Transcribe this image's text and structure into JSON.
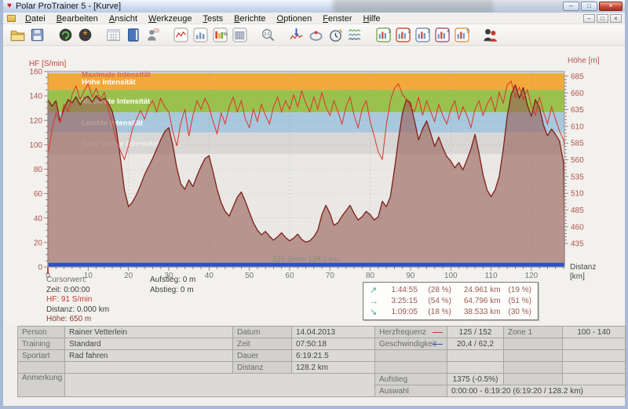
{
  "window": {
    "title": "Polar ProTrainer 5 - [Kurve]"
  },
  "menu": {
    "items": [
      {
        "label": "Datei",
        "accel": "D"
      },
      {
        "label": "Bearbeiten",
        "accel": "B"
      },
      {
        "label": "Ansicht",
        "accel": "A"
      },
      {
        "label": "Werkzeuge",
        "accel": "W"
      },
      {
        "label": "Tests",
        "accel": "T"
      },
      {
        "label": "Berichte",
        "accel": "B"
      },
      {
        "label": "Optionen",
        "accel": "O"
      },
      {
        "label": "Fenster",
        "accel": "F"
      },
      {
        "label": "Hilfe",
        "accel": "H"
      }
    ]
  },
  "toolbar": {
    "buttons": [
      {
        "name": "open-file-button",
        "icon": "open"
      },
      {
        "name": "save-button",
        "icon": "save"
      },
      {
        "name": "transfer-from-watch-button",
        "icon": "sync",
        "gap": true
      },
      {
        "name": "watch-settings-button",
        "icon": "gear"
      },
      {
        "name": "calendar-button",
        "icon": "calendar",
        "gap": true
      },
      {
        "name": "training-diary-button",
        "icon": "diary"
      },
      {
        "name": "person-info-button",
        "icon": "person"
      },
      {
        "name": "curve-view-button",
        "icon": "curve",
        "gap": true
      },
      {
        "name": "bar-view-button",
        "icon": "bars"
      },
      {
        "name": "percent-view-button",
        "icon": "pct"
      },
      {
        "name": "lap-view-button",
        "icon": "vbars"
      },
      {
        "name": "zoom-1-1-button",
        "icon": "zoom",
        "gap": true
      },
      {
        "name": "curve-download-button",
        "icon": "downchart",
        "gap": true
      },
      {
        "name": "lap-marker-button",
        "icon": "lap"
      },
      {
        "name": "timer-button",
        "icon": "timer"
      },
      {
        "name": "multi-curve-button",
        "icon": "multi"
      },
      {
        "name": "view-1-button",
        "icon": "num",
        "n": "1",
        "color": "#6aa84f",
        "gap": true
      },
      {
        "name": "view-2-button",
        "icon": "num",
        "n": "2",
        "color": "#cc4125"
      },
      {
        "name": "view-3-button",
        "icon": "num",
        "n": "3",
        "color": "#6d8ab0"
      },
      {
        "name": "view-4-button",
        "icon": "num",
        "n": "4",
        "color": "#a64d79"
      },
      {
        "name": "view-5-button",
        "icon": "num",
        "n": "5",
        "color": "#e69138"
      },
      {
        "name": "persons-button",
        "icon": "people",
        "gap": true
      }
    ]
  },
  "chart_data": {
    "type": "line",
    "x_axis": {
      "label_line1": "Distanz",
      "label_line2": "[km]",
      "min": 0,
      "max": 128.2,
      "tick_major": 10,
      "tick_minor": 2,
      "grid_every": 20
    },
    "y_left": {
      "label": "HF [S/min]",
      "min": 0,
      "max": 160,
      "tick_major": 20,
      "tick_minor": 5,
      "grid_every": 20,
      "tick_color": "#b2544a"
    },
    "y_right": {
      "label": "Höhe [m]",
      "min": 400,
      "max": 692,
      "tick_labels_from": 435,
      "tick_labels_to": 685,
      "tick_major": 25,
      "tick_minor": 5,
      "tick_color": "#b2544a"
    },
    "bands": [
      {
        "label": "Maximale Intensität",
        "from": 158.5,
        "to": 162,
        "color": "#cfd9e2",
        "label_color": "#d9695e"
      },
      {
        "label": "Hohe Intensität",
        "from": 145,
        "to": 158.5,
        "color": "#f2a93c",
        "label_color": "#ffffff"
      },
      {
        "label": "Moderate Intensität",
        "from": 126.5,
        "to": 145,
        "color": "#9ac14e",
        "label_color": "#ffffff"
      },
      {
        "label": "Leichte Intensität",
        "from": 110,
        "to": 126.5,
        "color": "#a8c8de",
        "label_color": "#ffffff"
      },
      {
        "label": "Sehr leichte Intensität",
        "from": 92.5,
        "to": 110,
        "color": "#d8d7d5",
        "label_color": "#efefef"
      }
    ],
    "x_step": 1,
    "x_last": 128.2,
    "series": [
      {
        "name": "Höhe",
        "axis": "right",
        "line_color": "#7d2018",
        "fill_color": "rgba(152,97,89,0.62)",
        "values": [
          650,
          640,
          648,
          618,
          636,
          650,
          645,
          654,
          642,
          652,
          655,
          646,
          656,
          648,
          652,
          645,
          632,
          605,
          562,
          515,
          490,
          497,
          508,
          522,
          538,
          550,
          562,
          576,
          590,
          602,
          608,
          582,
          548,
          524,
          516,
          530,
          520,
          536,
          550,
          562,
          566,
          542,
          516,
          496,
          483,
          476,
          490,
          504,
          512,
          498,
          482,
          466,
          455,
          448,
          453,
          446,
          440,
          445,
          451,
          444,
          439,
          443,
          449,
          441,
          437,
          439,
          445,
          455,
          478,
          492,
          480,
          462,
          466,
          476,
          484,
          492,
          480,
          470,
          475,
          483,
          478,
          470,
          475,
          498,
          490,
          505,
          545,
          590,
          630,
          650,
          645,
          618,
          590,
          606,
          618,
          600,
          580,
          594,
          578,
          565,
          558,
          548,
          556,
          545,
          560,
          576,
          598,
          570,
          538,
          515,
          505,
          515,
          535,
          575,
          625,
          658,
          672,
          652,
          668,
          642,
          625,
          650,
          638,
          612,
          596,
          606,
          598,
          588,
          555,
          452
        ]
      },
      {
        "name": "Herzfrequenz",
        "axis": "left",
        "line_color": "#e13028",
        "values": [
          91,
          112,
          126,
          118,
          133,
          127,
          141,
          148,
          137,
          144,
          150,
          139,
          146,
          137,
          143,
          129,
          117,
          104,
          95,
          88,
          99,
          113,
          121,
          128,
          121,
          131,
          136,
          127,
          138,
          131,
          127,
          111,
          99,
          118,
          129,
          107,
          124,
          136,
          129,
          138,
          131,
          119,
          109,
          126,
          117,
          131,
          139,
          127,
          136,
          121,
          114,
          129,
          119,
          133,
          124,
          117,
          131,
          139,
          127,
          136,
          129,
          141,
          131,
          144,
          134,
          127,
          139,
          129,
          143,
          131,
          124,
          136,
          127,
          117,
          131,
          139,
          124,
          114,
          129,
          136,
          119,
          107,
          94,
          88,
          116,
          136,
          146,
          150,
          141,
          137,
          131,
          127,
          139,
          124,
          136,
          127,
          119,
          133,
          124,
          117,
          129,
          136,
          121,
          131,
          124,
          114,
          129,
          136,
          124,
          133,
          139,
          127,
          143,
          134,
          149,
          152,
          139,
          147,
          137,
          145,
          131,
          124,
          139,
          127,
          117,
          131,
          121,
          111,
          104,
          97
        ]
      }
    ],
    "selection_bar": {
      "color": "#2a50cc"
    },
    "avg_label": "125 S/min 128.2 km"
  },
  "cursor": {
    "title": "Cursorwert:",
    "zeit": "Zeit: 0:00:00",
    "hf": "HF: 91 S/min",
    "distanz": "Distanz: 0.000 km",
    "hoehe": "Höhe:  650 m",
    "aufstieg": "Aufstieg: 0 m",
    "abstieg": "Abstieg: 0 m"
  },
  "legend": {
    "rows": [
      {
        "dir": "up",
        "time": "1:44:55",
        "time_pct": "(28 %)",
        "dist": "24.961 km",
        "dist_pct": "(19 %)"
      },
      {
        "dir": "flat",
        "time": "3:25:15",
        "time_pct": "(54 %)",
        "dist": "64.796 km",
        "dist_pct": "(51 %)"
      },
      {
        "dir": "down",
        "time": "1:09:05",
        "time_pct": "(18 %)",
        "dist": "38.533 km",
        "dist_pct": "(30 %)"
      }
    ]
  },
  "summary": {
    "person_label": "Person",
    "person_value": "Rainer Vetterlein",
    "training_label": "Training",
    "training_value": "Standard",
    "sportart_label": "Sportart",
    "sportart_value": "Rad fahren",
    "anmerkung_label": "Anmerkung",
    "anmerkung_value": "",
    "datum_label": "Datum",
    "datum_value": "14.04.2013",
    "zeit_label": "Zeit",
    "zeit_value": "07:50:18",
    "dauer_label": "Dauer",
    "dauer_value": "6:19:21.5",
    "distanz_label": "Distanz",
    "distanz_value": "128.2 km",
    "herzfrequenz_label": "Herzfrequenz",
    "herzfrequenz_value": "125 / 152",
    "geschwindigkeit_label": "Geschwindigkeit",
    "geschwindigkeit_value": "20,4 / 62,2",
    "zone_label": "Zone 1",
    "zone_value": "100 - 140",
    "aufstieg_label": "Aufstieg",
    "aufstieg_value": "1375 (-0.5%)",
    "auswahl_label": "Auswahl",
    "auswahl_value": "0:00:00 - 6:19:20 (6:19:20 / 128.2 km)"
  }
}
